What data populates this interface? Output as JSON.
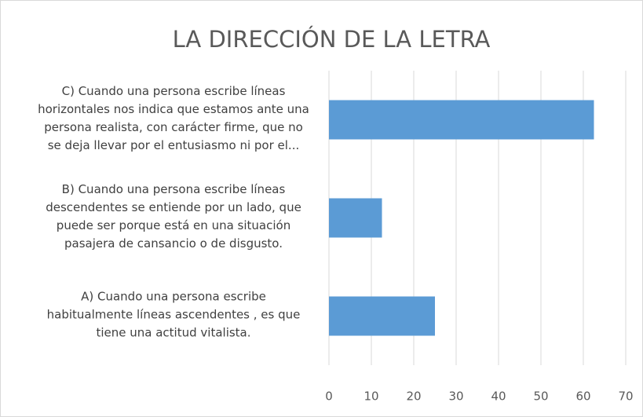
{
  "chart_data": {
    "type": "barh",
    "title": "LA DIRECCIÓN DE LA LETRA",
    "categories": [
      "C) Cuando una persona escribe líneas horizontales nos indica que estamos ante una persona realista, con carácter firme, que no se deja llevar por el entusiasmo ni por el...",
      "B) Cuando una persona escribe líneas descendentes se entiende por un lado, que puede ser porque está en una situación pasajera de cansancio o de disgusto.",
      "A) Cuando una persona escribe habitualmente líneas ascendentes , es que tiene una actitud vitalista."
    ],
    "values": [
      62.5,
      12.5,
      25
    ],
    "color": "#5b9bd5",
    "xlim": [
      0,
      70
    ],
    "xticks": [
      0,
      10,
      20,
      30,
      40,
      50,
      60,
      70
    ],
    "grid": true
  }
}
